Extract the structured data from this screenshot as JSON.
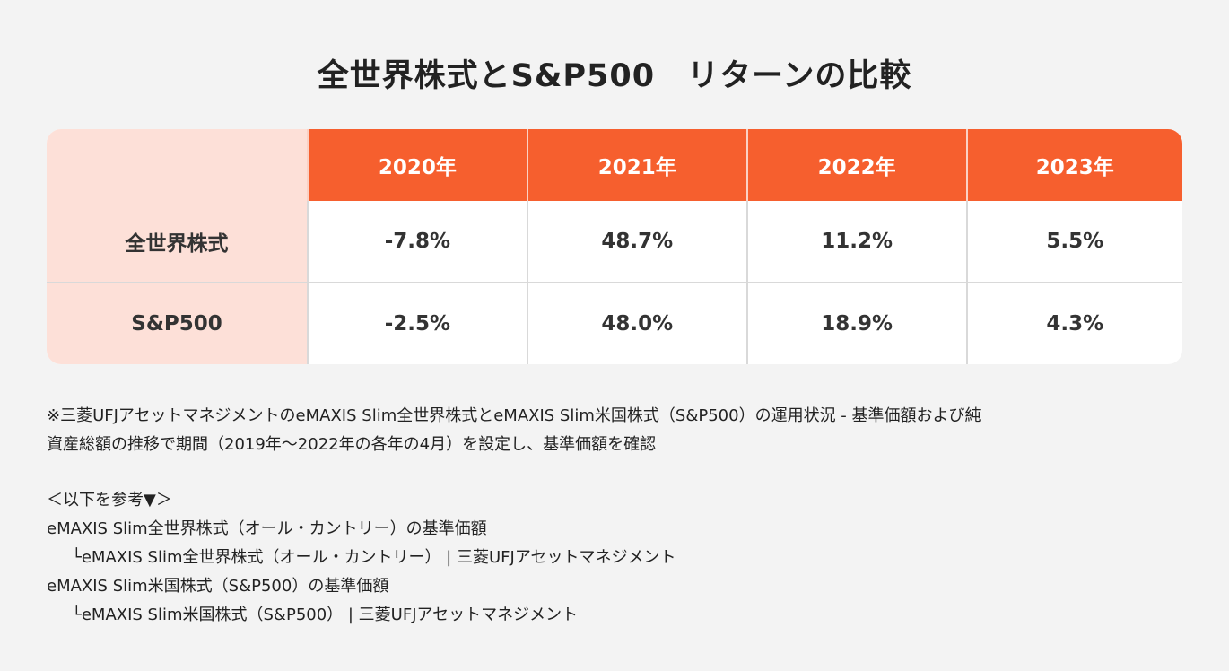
{
  "title": "全世界株式とS&P500　リターンの比較",
  "table": {
    "headers": [
      "",
      "2020年",
      "2021年",
      "2022年",
      "2023年"
    ],
    "rows": [
      {
        "label": "全世界株式",
        "values": [
          "-7.8%",
          "48.7%",
          "11.2%",
          "5.5%"
        ]
      },
      {
        "label": "S&P500",
        "values": [
          "-2.5%",
          "48.0%",
          "18.9%",
          "4.3%"
        ]
      }
    ]
  },
  "colors": {
    "header": "#f65f2e",
    "label_bg": "#fde0d8",
    "background": "#f3f3f3"
  },
  "notes": {
    "line1": "※三菱UFJアセットマネジメントのeMAXIS Slim全世界株式とeMAXIS Slim米国株式（S&P500）の運用状況 - 基準価額および純",
    "line2": "資産総額の推移で期間（2019年〜2022年の各年の4月）を設定し、基準価額を確認",
    "reference_heading": "＜以下を参考▼＞",
    "links": [
      {
        "text": "eMAXIS Slim全世界株式（オール・カントリー）の基準価額",
        "sub": "└eMAXIS Slim全世界株式（オール・カントリー） | 三菱UFJアセットマネジメント"
      },
      {
        "text": "eMAXIS Slim米国株式（S&P500）の基準価額",
        "sub": "└eMAXIS Slim米国株式（S&P500） | 三菱UFJアセットマネジメント"
      }
    ]
  }
}
